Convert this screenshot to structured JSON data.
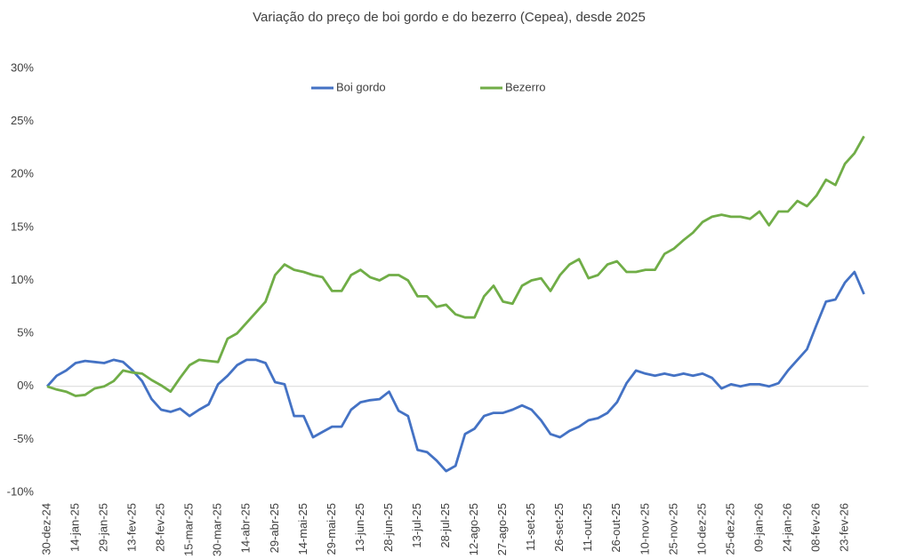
{
  "chart_data": {
    "type": "line",
    "title": "Variação do preço de boi gordo  e do bezerro (Cepea), desde 2025",
    "categories": [
      "30-dez-24",
      null,
      null,
      "14-jan-25",
      null,
      null,
      "29-jan-25",
      null,
      null,
      "13-fev-25",
      null,
      null,
      "28-fev-25",
      null,
      null,
      "15-mar-25",
      null,
      null,
      "30-mar-25",
      null,
      null,
      "14-abr-25",
      null,
      null,
      "29-abr-25",
      null,
      null,
      "14-mai-25",
      null,
      null,
      "29-mai-25",
      null,
      null,
      "13-jun-25",
      null,
      null,
      "28-jun-25",
      null,
      null,
      "13-jul-25",
      null,
      null,
      "28-jul-25",
      null,
      null,
      "12-ago-25",
      null,
      null,
      "27-ago-25",
      null,
      null,
      "11-set-25",
      null,
      null,
      "26-set-25",
      null,
      null,
      "11-out-25",
      null,
      null,
      "26-out-25",
      null,
      null,
      "10-nov-25",
      null,
      null,
      "25-nov-25",
      null,
      null,
      "10-dez-25",
      null,
      null,
      "25-dez-25",
      null,
      null,
      "09-jan-26",
      null,
      null,
      "24-jan-26",
      null,
      null,
      "08-fev-26",
      null,
      null,
      "23-fev-26",
      null,
      null
    ],
    "series": [
      {
        "name": "Boi gordo",
        "color": "#4472c4",
        "values": [
          0,
          1.0,
          1.5,
          2.2,
          2.4,
          2.3,
          2.2,
          2.5,
          2.3,
          1.5,
          0.5,
          -1.2,
          -2.2,
          -2.4,
          -2.1,
          -2.8,
          -2.2,
          -1.7,
          0.2,
          1.0,
          2.0,
          2.5,
          2.5,
          2.2,
          0.4,
          0.2,
          -2.8,
          -2.8,
          -4.8,
          -4.3,
          -3.8,
          -3.8,
          -2.2,
          -1.5,
          -1.3,
          -1.2,
          -0.5,
          -2.3,
          -2.8,
          -6.0,
          -6.2,
          -7.0,
          -8.0,
          -7.5,
          -4.5,
          -4.0,
          -2.8,
          -2.5,
          -2.5,
          -2.2,
          -1.8,
          -2.2,
          -3.2,
          -4.5,
          -4.8,
          -4.2,
          -3.8,
          -3.2,
          -3.0,
          -2.5,
          -1.5,
          0.3,
          1.5,
          1.2,
          1.0,
          1.2,
          1.0,
          1.2,
          1.0,
          1.2,
          0.8,
          -0.2,
          0.2,
          0.0,
          0.2,
          0.2,
          0.0,
          0.3,
          1.5,
          2.5,
          3.5,
          5.8,
          8.0,
          8.2,
          9.8,
          10.8,
          8.7
        ]
      },
      {
        "name": "Bezerro",
        "color": "#70ad47",
        "values": [
          0,
          -0.3,
          -0.5,
          -0.9,
          -0.8,
          -0.2,
          0.0,
          0.5,
          1.5,
          1.3,
          1.2,
          0.6,
          0.1,
          -0.5,
          0.8,
          2.0,
          2.5,
          2.4,
          2.3,
          4.5,
          5.0,
          6.0,
          7.0,
          8.0,
          10.5,
          11.5,
          11.0,
          10.8,
          10.5,
          10.3,
          9.0,
          9.0,
          10.5,
          11.0,
          10.3,
          10.0,
          10.5,
          10.5,
          10.0,
          8.5,
          8.5,
          7.5,
          7.7,
          6.8,
          6.5,
          6.5,
          8.5,
          9.5,
          8.0,
          7.8,
          9.5,
          10.0,
          10.2,
          9.0,
          10.5,
          11.5,
          12.0,
          10.2,
          10.5,
          11.5,
          11.8,
          10.8,
          10.8,
          11.0,
          11.0,
          12.5,
          13.0,
          13.8,
          14.5,
          15.5,
          16.0,
          16.2,
          16.0,
          16.0,
          15.8,
          16.5,
          15.2,
          16.5,
          16.5,
          17.5,
          17.0,
          18.0,
          19.5,
          19.0,
          21.0,
          22.0,
          23.6
        ]
      }
    ],
    "ylim": [
      -10,
      30
    ],
    "yticks": [
      {
        "value": -10,
        "label": "-10%"
      },
      {
        "value": -5,
        "label": "-5%"
      },
      {
        "value": 0,
        "label": "0%"
      },
      {
        "value": 5,
        "label": "5%"
      },
      {
        "value": 10,
        "label": "10%"
      },
      {
        "value": 15,
        "label": "15%"
      },
      {
        "value": 20,
        "label": "20%"
      },
      {
        "value": 25,
        "label": "25%"
      },
      {
        "value": 30,
        "label": "30%"
      }
    ],
    "legend": "top"
  }
}
